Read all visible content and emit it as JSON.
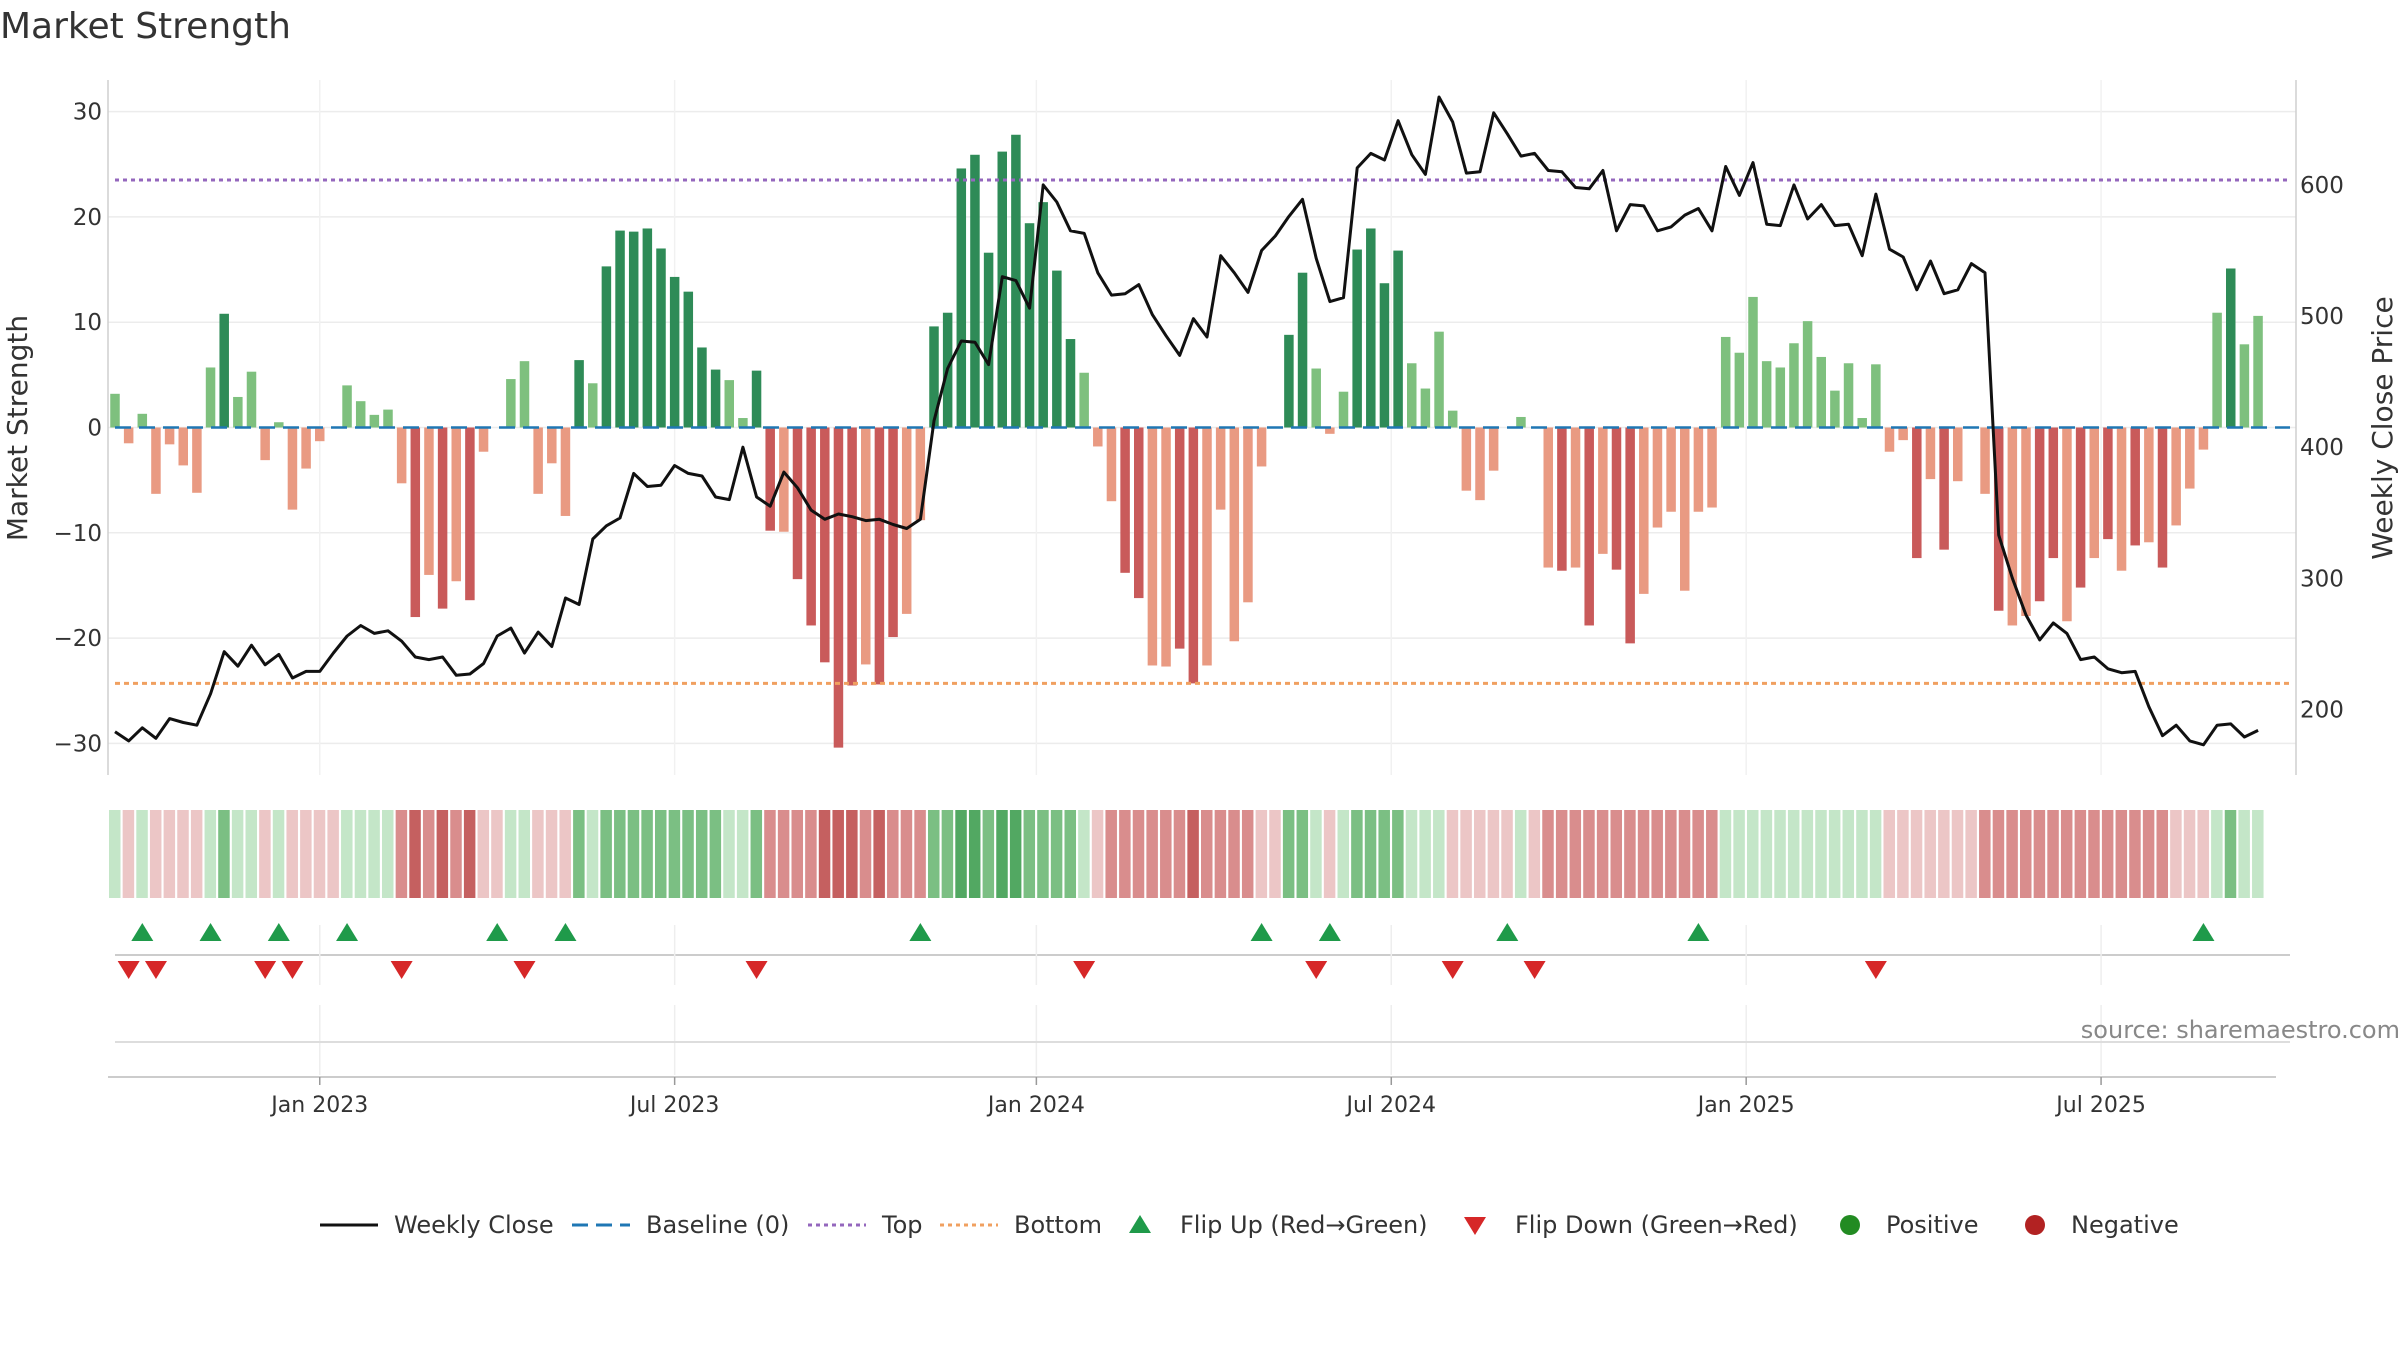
{
  "chart_data": {
    "type": "bar+line",
    "title": "Market Strength",
    "ylabel_left": "Market Strength",
    "ylabel_right": "Weekly Close Price",
    "ylim_left": [
      -33,
      33
    ],
    "ylim_right": [
      150,
      680
    ],
    "left_ticks": [
      30,
      20,
      10,
      0,
      -10,
      -20,
      -30
    ],
    "left_tick_labels": [
      "30",
      "20",
      "10",
      "0",
      "−10",
      "−20",
      "−30"
    ],
    "right_ticks": [
      600,
      500,
      400,
      300,
      200
    ],
    "right_tick_labels": [
      "600",
      "500",
      "400",
      "300",
      "200"
    ],
    "x_tick_labels": [
      "Jan 2023",
      "Jul 2023",
      "Jan 2024",
      "Jul 2024",
      "Jan 2025",
      "Jul 2025"
    ],
    "x_tick_weeks": [
      15,
      41,
      67.5,
      93.5,
      119.5,
      145.5
    ],
    "top_line": 23.5,
    "bottom_line": -24.3,
    "baseline": 0,
    "strength": [
      3.2,
      -1.5,
      1.3,
      -6.3,
      -1.6,
      -3.6,
      -6.2,
      5.7,
      10.8,
      2.9,
      5.3,
      -3.1,
      0.5,
      -7.8,
      -3.9,
      -1.3,
      0,
      4.0,
      2.5,
      1.2,
      1.7,
      -5.3,
      -18.0,
      -14.0,
      -17.2,
      -14.6,
      -16.4,
      -2.3,
      0,
      4.6,
      6.3,
      -6.3,
      -3.4,
      -8.4,
      6.4,
      4.2,
      15.3,
      18.7,
      18.6,
      18.9,
      17.0,
      14.3,
      12.9,
      7.6,
      5.5,
      4.5,
      0.9,
      5.4,
      -9.8,
      -9.9,
      -14.4,
      -18.8,
      -22.3,
      -30.4,
      -24.5,
      -22.5,
      -24.4,
      -19.9,
      -17.7,
      -8.8,
      9.6,
      10.9,
      24.6,
      25.9,
      16.6,
      26.2,
      27.8,
      19.4,
      21.4,
      14.9,
      8.4,
      5.2,
      -1.8,
      -7.0,
      -13.8,
      -16.2,
      -22.6,
      -22.7,
      -21.0,
      -24.3,
      -22.6,
      -7.8,
      -20.3,
      -16.6,
      -3.7,
      0,
      8.8,
      14.7,
      5.6,
      -0.6,
      3.4,
      16.9,
      18.9,
      13.7,
      16.8,
      6.1,
      3.7,
      9.1,
      1.6,
      -6.0,
      -6.9,
      -4.1,
      0,
      1.0,
      0,
      -13.3,
      -13.6,
      -13.3,
      -18.8,
      -12.0,
      -13.5,
      -20.5,
      -15.8,
      -9.5,
      -8.0,
      -15.5,
      -8.0,
      -7.6,
      8.6,
      7.1,
      12.4,
      6.3,
      5.7,
      8.0,
      10.1,
      6.7,
      3.5,
      6.1,
      0.9,
      6.0,
      -2.3,
      -1.2,
      -12.4,
      -4.9,
      -11.6,
      -5.1,
      0,
      -6.3,
      -17.4,
      -18.8,
      -17.9,
      -16.5,
      -12.4,
      -18.4,
      -15.2,
      -12.4,
      -10.6,
      -13.6,
      -11.2,
      -10.9,
      -13.3,
      -9.3,
      -5.8,
      -2.1,
      10.9,
      15.1,
      7.9,
      10.6
    ],
    "close": [
      183,
      176,
      186,
      178,
      193,
      190,
      188,
      212,
      244,
      233,
      249,
      234,
      242,
      224,
      229,
      229,
      243,
      256,
      264,
      258,
      260,
      252,
      240,
      238,
      240,
      226,
      227,
      235,
      256,
      262,
      243,
      259,
      248,
      285,
      280,
      330,
      340,
      346,
      380,
      370,
      371,
      386,
      380,
      378,
      362,
      360,
      400,
      362,
      355,
      381,
      369,
      352,
      345,
      349,
      347,
      344,
      345,
      341,
      338,
      345,
      420,
      460,
      481,
      480,
      463,
      530,
      527,
      506,
      600,
      587,
      565,
      563,
      533,
      516,
      517,
      524,
      501,
      485,
      470,
      498,
      484,
      546,
      533,
      518,
      550,
      561,
      576,
      589,
      544,
      511,
      514,
      613,
      624,
      619,
      649,
      623,
      608,
      667,
      648,
      609,
      610,
      655,
      639,
      622,
      624,
      611,
      610,
      598,
      597,
      611,
      565,
      585,
      584,
      565,
      568,
      577,
      582,
      565,
      614,
      592,
      617,
      570,
      569,
      600,
      574,
      585,
      569,
      570,
      546,
      593,
      551,
      545,
      520,
      542,
      517,
      520,
      540,
      533,
      333,
      300,
      272,
      253,
      266,
      258,
      238,
      240,
      231,
      228,
      229,
      202,
      180,
      188,
      176,
      173,
      188,
      189,
      179,
      184
    ],
    "color_band": [
      "lg",
      "pr",
      "lg",
      "pr",
      "pr",
      "pr",
      "pr",
      "lg",
      "mg",
      "lg",
      "lg",
      "pr",
      "lg",
      "pr",
      "pr",
      "pr",
      "pr",
      "lg",
      "lg",
      "lg",
      "lg",
      "mr",
      "dr",
      "mr",
      "dr",
      "mr",
      "dr",
      "pr",
      "pr",
      "lg",
      "lg",
      "pr",
      "pr",
      "pr",
      "mg",
      "lg",
      "mg",
      "mg",
      "mg",
      "mg",
      "mg",
      "mg",
      "mg",
      "mg",
      "mg",
      "lg",
      "lg",
      "mg",
      "mr",
      "mr",
      "mr",
      "mr",
      "dr",
      "dr",
      "dr",
      "mr",
      "dr",
      "mr",
      "mr",
      "mr",
      "mg",
      "mg",
      "dg",
      "dg",
      "mg",
      "dg",
      "dg",
      "mg",
      "mg",
      "mg",
      "mg",
      "lg",
      "pr",
      "mr",
      "mr",
      "mr",
      "mr",
      "mr",
      "mr",
      "dr",
      "mr",
      "mr",
      "mr",
      "mr",
      "pr",
      "pr",
      "mg",
      "mg",
      "lg",
      "pr",
      "lg",
      "mg",
      "mg",
      "mg",
      "mg",
      "lg",
      "lg",
      "lg",
      "pr",
      "pr",
      "pr",
      "pr",
      "pr",
      "lg",
      "pr",
      "mr",
      "mr",
      "mr",
      "mr",
      "mr",
      "mr",
      "mr",
      "mr",
      "mr",
      "mr",
      "mr",
      "mr",
      "mr",
      "lg",
      "lg",
      "lg",
      "lg",
      "lg",
      "lg",
      "lg",
      "lg",
      "lg",
      "lg",
      "lg",
      "lg",
      "pr",
      "pr",
      "pr",
      "pr",
      "pr",
      "pr",
      "pr",
      "mr",
      "mr",
      "mr",
      "mr",
      "mr",
      "mr",
      "mr",
      "mr",
      "mr",
      "mr",
      "mr",
      "mr",
      "mr",
      "mr",
      "pr",
      "pr",
      "pr",
      "lg",
      "mg",
      "lg",
      "lg"
    ],
    "flip_up_weeks": [
      2,
      7,
      12,
      17,
      28,
      33,
      59,
      84,
      89,
      102,
      116,
      153
    ],
    "flip_down_weeks": [
      1,
      3,
      11,
      13,
      21,
      30,
      47,
      71,
      88,
      98,
      104,
      129
    ],
    "legend": [
      "Weekly Close",
      "Baseline (0)",
      "Top",
      "Bottom",
      "Flip Up (Red→Green)",
      "Flip Down (Green→Red)",
      "Positive",
      "Negative"
    ],
    "legend_position": "bottom-center"
  },
  "colors": {
    "dark_green": "#2e8b57",
    "light_green": "#7ec07e",
    "dark_red": "#c95a5a",
    "light_red": "#e99a82",
    "top_line": "#9467bd",
    "bottom_line": "#f0a060",
    "baseline": "#1f77b4",
    "close_line": "#111111",
    "flip_up": "#1f9a4a",
    "flip_down": "#d62728",
    "positive": "#228b22",
    "negative": "#b22222",
    "band_dg": "#52a862",
    "band_mg": "#7bbf83",
    "band_lg": "#c4e6c8",
    "band_pr": "#ecc6c6",
    "band_mr": "#d98d8d",
    "band_dr": "#c56060"
  },
  "source": "source: sharemaestro.com"
}
